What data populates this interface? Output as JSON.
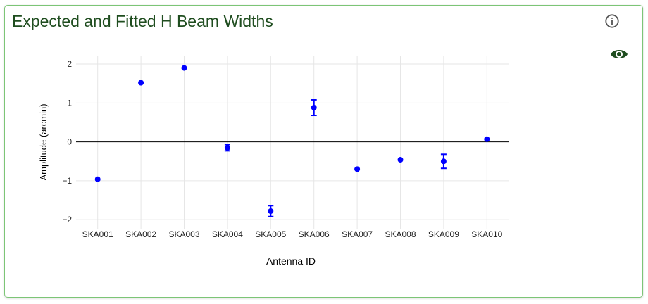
{
  "card": {
    "title": "Expected and Fitted H Beam Widths",
    "icons": {
      "info": "info-circle-icon",
      "visibility": "eye-icon"
    }
  },
  "colors": {
    "accent": "#1f4d1f",
    "border": "#7cc576",
    "marker": "#0000ff"
  },
  "chart_data": {
    "type": "scatter",
    "title": "",
    "xlabel": "Antenna ID",
    "ylabel": "Amplitude (arcmin)",
    "categories": [
      "SKA001",
      "SKA002",
      "SKA003",
      "SKA004",
      "SKA005",
      "SKA006",
      "SKA007",
      "SKA008",
      "SKA009",
      "SKA010"
    ],
    "values": [
      -0.96,
      1.52,
      1.9,
      -0.15,
      -1.78,
      0.88,
      -0.7,
      -0.46,
      -0.5,
      0.07
    ],
    "errors": [
      0,
      0.03,
      0.03,
      0.08,
      0.14,
      0.2,
      0.03,
      0.03,
      0.18,
      0.03
    ],
    "ylim": [
      -2.25,
      2.2
    ],
    "yticks": [
      2,
      1,
      0,
      -1,
      -2
    ],
    "ytick_labels": [
      "2",
      "1",
      "0",
      "−1",
      "−2"
    ],
    "grid": true,
    "zero_line": true
  }
}
